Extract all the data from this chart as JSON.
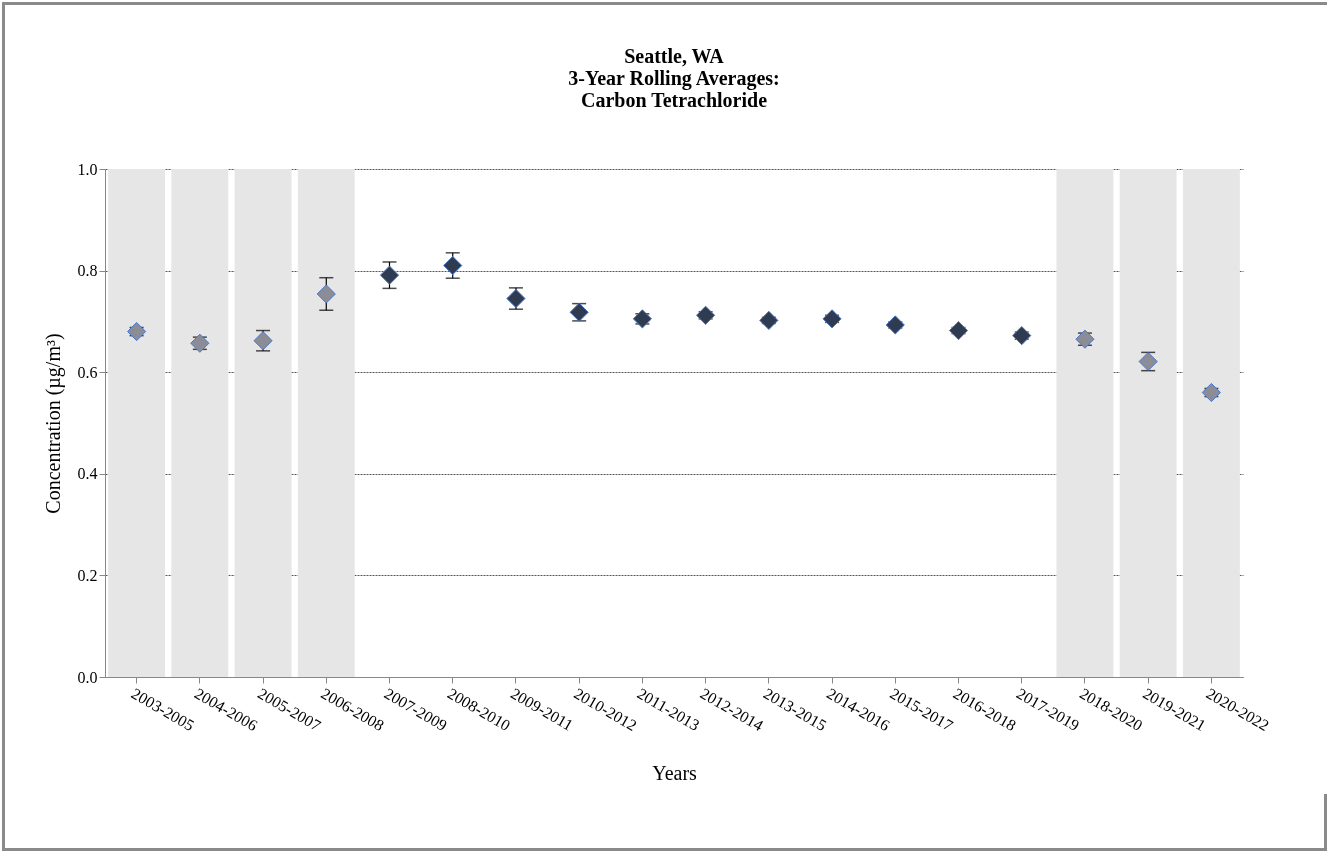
{
  "chart_data": {
    "type": "scatter",
    "title": [
      "Seattle, WA",
      "3-Year Rolling Averages:",
      "Carbon Tetrachloride"
    ],
    "xlabel": "Years",
    "ylabel": "Concentration (µg/m³)",
    "categories": [
      "2003-2005",
      "2004-2006",
      "2005-2007",
      "2006-2008",
      "2007-2009",
      "2008-2010",
      "2009-2011",
      "2010-2012",
      "2011-2013",
      "2012-2014",
      "2013-2015",
      "2014-2016",
      "2015-2017",
      "2016-2018",
      "2017-2019",
      "2018-2020",
      "2019-2021",
      "2020-2022"
    ],
    "series": [
      {
        "color": "#8c8c96",
        "values": [
          0.68,
          0.657,
          0.662,
          0.754,
          null,
          null,
          null,
          null,
          null,
          null,
          null,
          null,
          null,
          null,
          null,
          0.665,
          0.621,
          0.56
        ],
        "errors": [
          0.008,
          0.012,
          0.02,
          0.032,
          null,
          null,
          null,
          null,
          null,
          null,
          null,
          null,
          null,
          null,
          null,
          0.012,
          0.018,
          0.008
        ]
      },
      {
        "color": "#2f3b50",
        "values": [
          null,
          null,
          null,
          null,
          0.791,
          0.81,
          0.745,
          0.718,
          0.705,
          0.712,
          0.702,
          0.705,
          0.693,
          0.682,
          0.672,
          null,
          null,
          null
        ],
        "errors": [
          null,
          null,
          null,
          null,
          0.026,
          0.025,
          0.021,
          0.017,
          0.01,
          0.007,
          0.006,
          0.007,
          0.006,
          0.006,
          0.007,
          null,
          null,
          null
        ]
      }
    ],
    "bands": [
      {
        "axis": "x",
        "from": "2003-2005",
        "to": "2003-2005",
        "color": "#e6e6e6"
      },
      {
        "axis": "x",
        "from": "2004-2006",
        "to": "2004-2006",
        "color": "#e6e6e6"
      },
      {
        "axis": "x",
        "from": "2005-2007",
        "to": "2005-2007",
        "color": "#e6e6e6"
      },
      {
        "axis": "x",
        "from": "2006-2008",
        "to": "2006-2008",
        "color": "#e6e6e6"
      },
      {
        "axis": "x",
        "from": "2018-2020",
        "to": "2018-2020",
        "color": "#e6e6e6"
      },
      {
        "axis": "x",
        "from": "2019-2021",
        "to": "2019-2021",
        "color": "#e6e6e6"
      },
      {
        "axis": "x",
        "from": "2020-2022",
        "to": "2020-2022",
        "color": "#e6e6e6"
      }
    ],
    "ylim": [
      0,
      1
    ],
    "yticks": [
      {
        "value": 0,
        "label": "0.0"
      },
      {
        "value": 0.2,
        "label": "0.2"
      },
      {
        "value": 0.4,
        "label": "0.4"
      },
      {
        "value": 0.6,
        "label": "0.6"
      },
      {
        "value": 0.8,
        "label": "0.8"
      },
      {
        "value": 1,
        "label": "1.0"
      }
    ],
    "grid": "y",
    "marker": "diamond"
  }
}
